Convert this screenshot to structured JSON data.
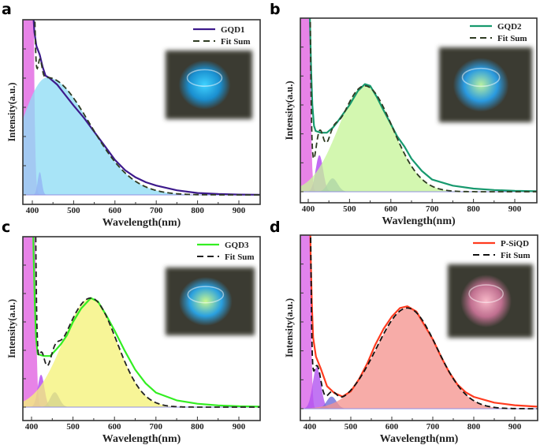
{
  "chart_data": [
    {
      "type": "line",
      "panel_label": "a",
      "xlabel": "Wavelength(nm)",
      "ylabel": "Intensity(a.u.)",
      "xlim": [
        378,
        952
      ],
      "ylim": [
        -0.05,
        1.0
      ],
      "xticks": [
        400,
        500,
        600,
        700,
        800,
        900
      ],
      "grid": false,
      "legend_position": "top-right",
      "legend": [
        {
          "label": "GQD1",
          "color": "#3d1a8c",
          "style": "solid"
        },
        {
          "label": "Fit Sum",
          "color": "#2e3b22",
          "style": "dashed"
        }
      ],
      "inset_photo_glow": [
        "#3fd2ff",
        "#1a8fd0"
      ],
      "measured": {
        "name": "GQD1",
        "points": [
          [
            398,
            1.4
          ],
          [
            402,
            1.05
          ],
          [
            405,
            0.93
          ],
          [
            410,
            0.85
          ],
          [
            418,
            0.8
          ],
          [
            425,
            0.73
          ],
          [
            432,
            0.68
          ],
          [
            440,
            0.67
          ],
          [
            460,
            0.63
          ],
          [
            480,
            0.57
          ],
          [
            500,
            0.51
          ],
          [
            525,
            0.44
          ],
          [
            550,
            0.36
          ],
          [
            575,
            0.28
          ],
          [
            600,
            0.2
          ],
          [
            625,
            0.14
          ],
          [
            650,
            0.1
          ],
          [
            675,
            0.072
          ],
          [
            700,
            0.053
          ],
          [
            750,
            0.026
          ],
          [
            800,
            0.011
          ],
          [
            850,
            0.005
          ],
          [
            900,
            0.002
          ],
          [
            952,
            0.001
          ]
        ]
      },
      "fit_components": [
        {
          "center": 382,
          "sigma_left": 8,
          "sigma_right": 8,
          "height": 40,
          "color": "#e060e0"
        },
        {
          "center": 418,
          "sigma_left": 5,
          "sigma_right": 5,
          "height": 0.13,
          "color": "#a020f0"
        },
        {
          "center": 436,
          "sigma_left": 63,
          "sigma_right": 103,
          "height": 0.67,
          "color": "#8fdcf5"
        }
      ]
    },
    {
      "type": "line",
      "panel_label": "b",
      "xlabel": "Wavlength(nm)",
      "ylabel": "Intensity(a.u.)",
      "xlim": [
        381,
        953
      ],
      "ylim": [
        -0.06,
        1.0
      ],
      "xticks": [
        400,
        500,
        600,
        700,
        800,
        900
      ],
      "grid": false,
      "legend_position": "top-right",
      "legend": [
        {
          "label": "GQD2",
          "color": "#17996e",
          "style": "solid"
        },
        {
          "label": "Fit Sum",
          "color": "#2e3b22",
          "style": "dashed"
        }
      ],
      "inset_photo_glow": [
        "#b8f0a0",
        "#2a9ae0"
      ],
      "measured": {
        "name": "GQD2",
        "points": [
          [
            401,
            1.4
          ],
          [
            404,
            1.0
          ],
          [
            407,
            0.7
          ],
          [
            410,
            0.5
          ],
          [
            414,
            0.38
          ],
          [
            418,
            0.35
          ],
          [
            430,
            0.34
          ],
          [
            445,
            0.34
          ],
          [
            460,
            0.37
          ],
          [
            470,
            0.4
          ],
          [
            485,
            0.45
          ],
          [
            500,
            0.5
          ],
          [
            520,
            0.58
          ],
          [
            537,
            0.62
          ],
          [
            550,
            0.61
          ],
          [
            565,
            0.55
          ],
          [
            580,
            0.48
          ],
          [
            600,
            0.39
          ],
          [
            615,
            0.32
          ],
          [
            633,
            0.26
          ],
          [
            650,
            0.19
          ],
          [
            675,
            0.12
          ],
          [
            700,
            0.07
          ],
          [
            750,
            0.035
          ],
          [
            800,
            0.018
          ],
          [
            850,
            0.01
          ],
          [
            900,
            0.005
          ],
          [
            953,
            0.003
          ]
        ]
      },
      "fit_components": [
        {
          "center": 383,
          "sigma_left": 8,
          "sigma_right": 8,
          "height": 40,
          "color": "#e060e0"
        },
        {
          "center": 427,
          "sigma_left": 9,
          "sigma_right": 9,
          "height": 0.21,
          "color": "#b040f0"
        },
        {
          "center": 459,
          "sigma_left": 12,
          "sigma_right": 12,
          "height": 0.077,
          "color": "#5a6ad0"
        },
        {
          "center": 537,
          "sigma_left": 64,
          "sigma_right": 67,
          "height": 0.61,
          "color": "#c6f59a"
        }
      ]
    },
    {
      "type": "line",
      "panel_label": "c",
      "xlabel": "Wavelength(nm)",
      "ylabel": "Intensity(a.u.)",
      "xlim": [
        378,
        952
      ],
      "ylim": [
        -0.08,
        1.0
      ],
      "xticks": [
        400,
        500,
        600,
        700,
        800,
        900
      ],
      "grid": false,
      "legend_position": "top-right",
      "legend": [
        {
          "label": "GQD3",
          "color": "#33ee22",
          "style": "solid"
        },
        {
          "label": "Fit Sum",
          "color": "#222222",
          "style": "dashed"
        }
      ],
      "inset_photo_glow": [
        "#c8f890",
        "#2aa0e0"
      ],
      "measured": {
        "name": "GQD3",
        "points": [
          [
            402,
            1.4
          ],
          [
            405,
            0.9
          ],
          [
            408,
            0.6
          ],
          [
            411,
            0.4
          ],
          [
            415,
            0.31
          ],
          [
            430,
            0.3
          ],
          [
            445,
            0.3
          ],
          [
            460,
            0.34
          ],
          [
            471,
            0.37
          ],
          [
            485,
            0.42
          ],
          [
            500,
            0.5
          ],
          [
            520,
            0.58
          ],
          [
            543,
            0.64
          ],
          [
            560,
            0.62
          ],
          [
            580,
            0.54
          ],
          [
            600,
            0.45
          ],
          [
            625,
            0.33
          ],
          [
            650,
            0.22
          ],
          [
            675,
            0.14
          ],
          [
            700,
            0.085
          ],
          [
            750,
            0.04
          ],
          [
            800,
            0.02
          ],
          [
            850,
            0.01
          ],
          [
            900,
            0.005
          ],
          [
            952,
            0.003
          ]
        ]
      },
      "fit_components": [
        {
          "center": 388,
          "sigma_left": 8,
          "sigma_right": 8,
          "height": 40,
          "color": "#e060e0"
        },
        {
          "center": 423,
          "sigma_left": 8,
          "sigma_right": 8,
          "height": 0.19,
          "color": "#b040f0"
        },
        {
          "center": 456,
          "sigma_left": 11,
          "sigma_right": 11,
          "height": 0.087,
          "color": "#6a6ad0"
        },
        {
          "center": 543,
          "sigma_left": 67,
          "sigma_right": 62,
          "height": 0.64,
          "color": "#f5f27a"
        }
      ]
    },
    {
      "type": "line",
      "panel_label": "d",
      "xlabel": "Wavelength(nm)",
      "ylabel": "Intensity(a.u.)",
      "xlim": [
        375,
        955
      ],
      "ylim": [
        -0.07,
        1.0
      ],
      "xticks": [
        400,
        500,
        600,
        700,
        800,
        900
      ],
      "grid": false,
      "legend_position": "top-right",
      "legend": [
        {
          "label": "P-SiQD",
          "color": "#ff3b1f",
          "style": "solid"
        },
        {
          "label": "Fit Sum",
          "color": "#111111",
          "style": "dashed"
        }
      ],
      "inset_photo_glow": [
        "#f8b8c8",
        "#c07090"
      ],
      "measured": {
        "name": "P-SiQD",
        "points": [
          [
            399,
            1.4
          ],
          [
            402,
            0.9
          ],
          [
            405,
            0.6
          ],
          [
            408,
            0.41
          ],
          [
            415,
            0.3
          ],
          [
            427,
            0.23
          ],
          [
            442,
            0.13
          ],
          [
            460,
            0.09
          ],
          [
            480,
            0.07
          ],
          [
            500,
            0.1
          ],
          [
            520,
            0.17
          ],
          [
            540,
            0.26
          ],
          [
            560,
            0.37
          ],
          [
            580,
            0.46
          ],
          [
            600,
            0.53
          ],
          [
            620,
            0.58
          ],
          [
            638,
            0.59
          ],
          [
            660,
            0.56
          ],
          [
            680,
            0.48
          ],
          [
            700,
            0.4
          ],
          [
            720,
            0.3
          ],
          [
            740,
            0.21
          ],
          [
            760,
            0.14
          ],
          [
            780,
            0.095
          ],
          [
            800,
            0.068
          ],
          [
            850,
            0.035
          ],
          [
            900,
            0.02
          ],
          [
            955,
            0.012
          ]
        ]
      },
      "fit_components": [
        {
          "center": 383,
          "sigma_left": 7,
          "sigma_right": 7,
          "height": 40,
          "color": "#d860e8"
        },
        {
          "center": 417,
          "sigma_left": 10,
          "sigma_right": 10,
          "height": 0.24,
          "color": "#b050f0"
        },
        {
          "center": 453,
          "sigma_left": 12,
          "sigma_right": 12,
          "height": 0.07,
          "color": "#6a6ad8"
        },
        {
          "center": 638,
          "sigma_left": 75,
          "sigma_right": 72,
          "height": 0.58,
          "color": "#f59590"
        }
      ]
    }
  ]
}
